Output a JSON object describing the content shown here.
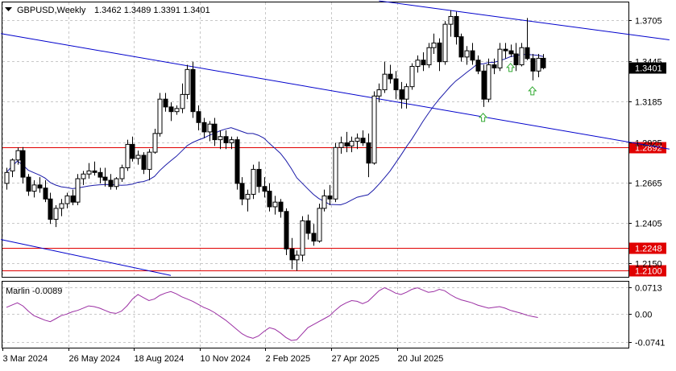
{
  "header": {
    "symbol": "GBPUSD,Weekly",
    "ohlc": "1.3462 1.3489 1.3391 1.3401"
  },
  "indicator": {
    "label": "Marlin -0.0089"
  },
  "colors": {
    "candle": "#000000",
    "trendline": "#0000cc",
    "moving_average": "#1a1aa8",
    "level_line": "#e00000",
    "marlin": "#9b2fa3",
    "arrow": "#33aa33",
    "grid": "#c8c8c8",
    "current_price_tag": "#000000"
  },
  "chart_data": [
    {
      "type": "candlestick",
      "title": "GBPUSD,Weekly",
      "ylim": [
        1.2061,
        1.382
      ],
      "y_ticks": [
        "1.3705",
        "1.3445",
        "1.3185",
        "1.2925",
        "1.2665",
        "1.2405",
        "1.2150"
      ],
      "x_ticks": [
        "3 Mar 2024",
        "26 May 2024",
        "18 Aug 2024",
        "10 Nov 2024",
        "2 Feb 2025",
        "27 Apr 2025",
        "20 Jul 2025"
      ],
      "current_price": "1.3401",
      "horizontal_levels": [
        "1.2892",
        "1.2248",
        "1.2100"
      ],
      "arrows": 3,
      "candles": [
        [
          1.266,
          1.276,
          1.262,
          1.273
        ],
        [
          1.274,
          1.282,
          1.27,
          1.281
        ],
        [
          1.281,
          1.289,
          1.278,
          1.287
        ],
        [
          1.287,
          1.2893,
          1.266,
          1.27
        ],
        [
          1.27,
          1.272,
          1.258,
          1.261
        ],
        [
          1.261,
          1.268,
          1.257,
          1.265
        ],
        [
          1.265,
          1.27,
          1.26,
          1.263
        ],
        [
          1.263,
          1.268,
          1.254,
          1.256
        ],
        [
          1.256,
          1.26,
          1.24,
          1.243
        ],
        [
          1.243,
          1.252,
          1.238,
          1.25
        ],
        [
          1.25,
          1.256,
          1.245,
          1.253
        ],
        [
          1.253,
          1.26,
          1.25,
          1.258
        ],
        [
          1.258,
          1.262,
          1.252,
          1.254
        ],
        [
          1.254,
          1.272,
          1.252,
          1.269
        ],
        [
          1.269,
          1.274,
          1.265,
          1.272
        ],
        [
          1.272,
          1.279,
          1.269,
          1.274
        ],
        [
          1.274,
          1.28,
          1.271,
          1.273
        ],
        [
          1.273,
          1.276,
          1.266,
          1.27
        ],
        [
          1.27,
          1.276,
          1.264,
          1.268
        ],
        [
          1.268,
          1.272,
          1.262,
          1.264
        ],
        [
          1.264,
          1.27,
          1.262,
          1.269
        ],
        [
          1.269,
          1.278,
          1.267,
          1.276
        ],
        [
          1.276,
          1.294,
          1.274,
          1.291
        ],
        [
          1.291,
          1.296,
          1.28,
          1.282
        ],
        [
          1.282,
          1.287,
          1.278,
          1.284
        ],
        [
          1.284,
          1.286,
          1.272,
          1.275
        ],
        [
          1.275,
          1.288,
          1.268,
          1.286
        ],
        [
          1.286,
          1.301,
          1.285,
          1.298
        ],
        [
          1.298,
          1.324,
          1.296,
          1.32
        ],
        [
          1.32,
          1.324,
          1.312,
          1.315
        ],
        [
          1.315,
          1.318,
          1.306,
          1.312
        ],
        [
          1.312,
          1.316,
          1.31,
          1.314
        ],
        [
          1.314,
          1.33,
          1.311,
          1.323
        ],
        [
          1.323,
          1.342,
          1.32,
          1.339
        ],
        [
          1.339,
          1.344,
          1.308,
          1.312
        ],
        [
          1.312,
          1.316,
          1.3,
          1.305
        ],
        [
          1.305,
          1.308,
          1.295,
          1.299
        ],
        [
          1.299,
          1.306,
          1.293,
          1.304
        ],
        [
          1.304,
          1.308,
          1.29,
          1.294
        ],
        [
          1.294,
          1.3,
          1.288,
          1.296
        ],
        [
          1.296,
          1.3,
          1.288,
          1.292
        ],
        [
          1.292,
          1.296,
          1.288,
          1.294
        ],
        [
          1.294,
          1.296,
          1.262,
          1.266
        ],
        [
          1.266,
          1.27,
          1.252,
          1.256
        ],
        [
          1.256,
          1.262,
          1.248,
          1.259
        ],
        [
          1.259,
          1.278,
          1.256,
          1.275
        ],
        [
          1.275,
          1.28,
          1.26,
          1.264
        ],
        [
          1.264,
          1.27,
          1.257,
          1.261
        ],
        [
          1.261,
          1.266,
          1.248,
          1.251
        ],
        [
          1.251,
          1.258,
          1.246,
          1.254
        ],
        [
          1.254,
          1.256,
          1.244,
          1.248
        ],
        [
          1.248,
          1.25,
          1.22,
          1.224
        ],
        [
          1.224,
          1.231,
          1.211,
          1.217
        ],
        [
          1.217,
          1.223,
          1.21,
          1.22
        ],
        [
          1.22,
          1.245,
          1.216,
          1.242
        ],
        [
          1.242,
          1.246,
          1.23,
          1.234
        ],
        [
          1.234,
          1.24,
          1.226,
          1.229
        ],
        [
          1.229,
          1.253,
          1.228,
          1.25
        ],
        [
          1.25,
          1.262,
          1.248,
          1.258
        ],
        [
          1.258,
          1.265,
          1.252,
          1.256
        ],
        [
          1.256,
          1.292,
          1.254,
          1.289
        ],
        [
          1.289,
          1.296,
          1.285,
          1.292
        ],
        [
          1.292,
          1.299,
          1.286,
          1.29
        ],
        [
          1.29,
          1.296,
          1.286,
          1.293
        ],
        [
          1.293,
          1.298,
          1.288,
          1.295
        ],
        [
          1.295,
          1.3,
          1.29,
          1.292
        ],
        [
          1.292,
          1.298,
          1.27,
          1.279
        ],
        [
          1.279,
          1.325,
          1.278,
          1.322
        ],
        [
          1.322,
          1.33,
          1.318,
          1.326
        ],
        [
          1.326,
          1.344,
          1.324,
          1.336
        ],
        [
          1.336,
          1.342,
          1.33,
          1.333
        ],
        [
          1.333,
          1.338,
          1.32,
          1.326
        ],
        [
          1.326,
          1.331,
          1.314,
          1.32
        ],
        [
          1.32,
          1.33,
          1.314,
          1.328
        ],
        [
          1.328,
          1.343,
          1.326,
          1.341
        ],
        [
          1.341,
          1.348,
          1.337,
          1.345
        ],
        [
          1.345,
          1.35,
          1.338,
          1.342
        ],
        [
          1.342,
          1.356,
          1.34,
          1.353
        ],
        [
          1.353,
          1.362,
          1.349,
          1.356
        ],
        [
          1.356,
          1.359,
          1.338,
          1.344
        ],
        [
          1.344,
          1.37,
          1.342,
          1.368
        ],
        [
          1.368,
          1.377,
          1.36,
          1.373
        ],
        [
          1.373,
          1.376,
          1.355,
          1.36
        ],
        [
          1.36,
          1.362,
          1.344,
          1.347
        ],
        [
          1.347,
          1.354,
          1.342,
          1.351
        ],
        [
          1.351,
          1.356,
          1.342,
          1.345
        ],
        [
          1.345,
          1.348,
          1.336,
          1.338
        ],
        [
          1.338,
          1.342,
          1.315,
          1.32
        ],
        [
          1.32,
          1.346,
          1.318,
          1.342
        ],
        [
          1.342,
          1.346,
          1.336,
          1.34
        ],
        [
          1.34,
          1.356,
          1.338,
          1.352
        ],
        [
          1.352,
          1.356,
          1.346,
          1.351
        ],
        [
          1.351,
          1.355,
          1.347,
          1.349
        ],
        [
          1.349,
          1.356,
          1.338,
          1.342
        ],
        [
          1.342,
          1.356,
          1.341,
          1.353
        ],
        [
          1.353,
          1.372,
          1.345,
          1.346
        ],
        [
          1.346,
          1.349,
          1.332,
          1.338
        ],
        [
          1.338,
          1.349,
          1.334,
          1.3462
        ],
        [
          1.3462,
          1.3489,
          1.3391,
          1.3401
        ]
      ]
    },
    {
      "type": "line",
      "title": "Marlin -0.0089",
      "ylim": [
        -0.0741,
        0.0713
      ],
      "y_ticks": [
        "0.0713",
        "0.00",
        "-0.0741"
      ],
      "values": [
        0.018,
        0.024,
        0.03,
        0.022,
        0.008,
        -0.004,
        -0.01,
        -0.016,
        -0.02,
        -0.012,
        -0.004,
        0.0,
        0.006,
        0.01,
        0.016,
        0.022,
        0.02,
        0.016,
        0.01,
        0.004,
        0.002,
        0.008,
        0.022,
        0.04,
        0.052,
        0.044,
        0.036,
        0.04,
        0.05,
        0.056,
        0.06,
        0.054,
        0.046,
        0.04,
        0.034,
        0.026,
        0.018,
        0.012,
        0.004,
        -0.006,
        -0.016,
        -0.028,
        -0.04,
        -0.052,
        -0.06,
        -0.064,
        -0.058,
        -0.046,
        -0.036,
        -0.04,
        -0.05,
        -0.062,
        -0.07,
        -0.068,
        -0.052,
        -0.036,
        -0.028,
        -0.02,
        -0.012,
        -0.004,
        0.01,
        0.022,
        0.03,
        0.036,
        0.034,
        0.028,
        0.034,
        0.048,
        0.062,
        0.07,
        0.064,
        0.056,
        0.052,
        0.058,
        0.066,
        0.07,
        0.064,
        0.058,
        0.06,
        0.066,
        0.062,
        0.052,
        0.044,
        0.038,
        0.034,
        0.03,
        0.024,
        0.02,
        0.016,
        0.018,
        0.02,
        0.016,
        0.01,
        0.006,
        0.002,
        -0.003,
        -0.006,
        -0.0089
      ]
    }
  ]
}
